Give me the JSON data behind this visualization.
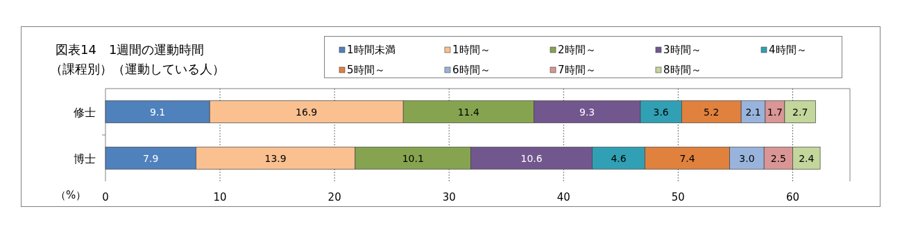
{
  "chart_data": {
    "type": "bar",
    "orientation": "horizontal",
    "stacked": true,
    "title": "図表14　1週間の運動時間",
    "subtitle": "（課程別）（運動している人）",
    "xlabel": "（%）",
    "categories": [
      "修士",
      "博士"
    ],
    "series": [
      {
        "name": "1時間未満",
        "color": "#4f81bd",
        "values": [
          9.1,
          7.9
        ],
        "value_labels": [
          "9.1",
          "7.9"
        ]
      },
      {
        "name": "1時間～",
        "color": "#fac090",
        "values": [
          16.9,
          13.9
        ],
        "value_labels": [
          "16.9",
          "13.9"
        ]
      },
      {
        "name": "2時間～",
        "color": "#86a44f",
        "values": [
          11.4,
          10.1
        ],
        "value_labels": [
          "11.4",
          "10.1"
        ]
      },
      {
        "name": "3時間～",
        "color": "#72578f",
        "values": [
          9.3,
          10.6
        ],
        "value_labels": [
          "9.3",
          "10.6"
        ]
      },
      {
        "name": "4時間～",
        "color": "#31a0b4",
        "values": [
          3.6,
          4.6
        ],
        "value_labels": [
          "3.6",
          "4.6"
        ]
      },
      {
        "name": "5時間～",
        "color": "#e0813e",
        "values": [
          5.2,
          7.4
        ],
        "value_labels": [
          "5.2",
          "7.4"
        ]
      },
      {
        "name": "6時間～",
        "color": "#99b4dc",
        "values": [
          2.1,
          3.0
        ],
        "value_labels": [
          "2.1",
          "3.0"
        ]
      },
      {
        "name": "7時間～",
        "color": "#d99694",
        "values": [
          1.7,
          2.5
        ],
        "value_labels": [
          "1.7",
          "2.5"
        ]
      },
      {
        "name": "8時間～",
        "color": "#c3d69b",
        "values": [
          2.7,
          2.4
        ],
        "value_labels": [
          "2.7",
          "2.4"
        ]
      }
    ],
    "xlim": [
      0,
      65
    ],
    "xticks": [
      0,
      10,
      20,
      30,
      40,
      50,
      60
    ],
    "grid": "x",
    "legend": "top right"
  }
}
